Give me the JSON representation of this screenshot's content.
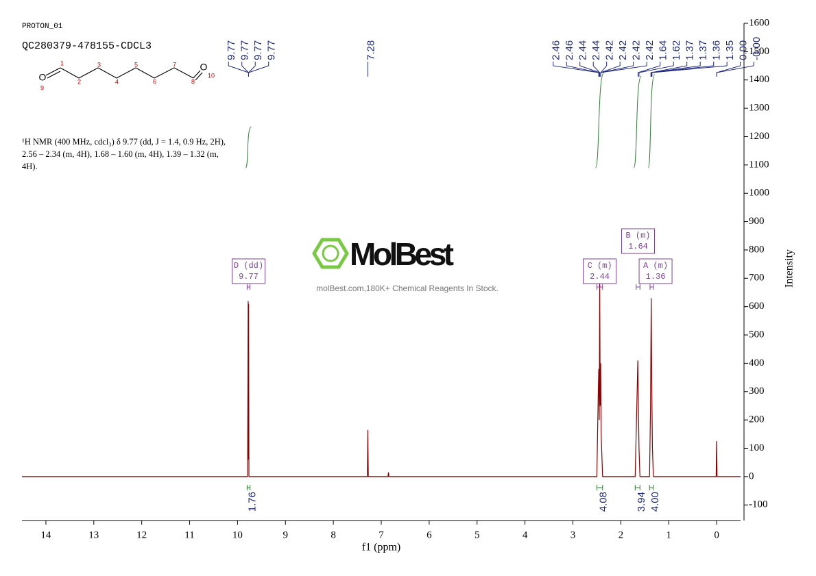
{
  "header": {
    "experiment": "PROTON_01",
    "sample": "QC280379-478155-CDCL3"
  },
  "description": [
    "¹H NMR (400 MHz, cdcl₃) δ 9.77 (dd, J = 1.4, 0.9 Hz, 2H),",
    "2.56 – 2.34 (m, 4H), 1.68 – 1.60 (m, 4H), 1.39 – 1.32 (m,",
    "4H)."
  ],
  "molecule": {
    "atoms": [
      "O",
      "O"
    ],
    "numbers": [
      1,
      2,
      3,
      4,
      5,
      6,
      7,
      8,
      9,
      10
    ]
  },
  "watermark": {
    "brand": "MolBest",
    "tagline": "molBest.com,180K+ Chemical Reagents In Stock."
  },
  "chart_data": {
    "type": "line",
    "x_label": "f1 (ppm)",
    "y_label": "Intensity",
    "color": "#8b0000",
    "x": [
      14.5,
      9.79,
      9.778,
      9.772,
      9.768,
      9.762,
      9.75,
      7.29,
      7.28,
      7.27,
      6.86,
      6.85,
      6.84,
      2.5,
      2.47,
      2.46,
      2.45,
      2.44,
      2.43,
      2.42,
      2.41,
      2.38,
      1.7,
      1.66,
      1.645,
      1.635,
      1.62,
      1.6,
      1.4,
      1.38,
      1.365,
      1.355,
      1.34,
      1.32,
      0.01,
      0.0,
      -0.01,
      -0.5
    ],
    "values": [
      0,
      0,
      620,
      60,
      610,
      0,
      0,
      0,
      165,
      0,
      0,
      15,
      0,
      0,
      300,
      380,
      200,
      700,
      250,
      400,
      150,
      0,
      0,
      290,
      410,
      280,
      100,
      0,
      0,
      240,
      630,
      350,
      100,
      0,
      0,
      125,
      0,
      0
    ],
    "xlim": [
      14.5,
      -0.5
    ],
    "xticks": [
      14,
      13,
      12,
      11,
      10,
      9,
      8,
      7,
      6,
      5,
      4,
      3,
      2,
      1,
      0
    ],
    "ylim": [
      -155,
      1600
    ],
    "yticks": [
      -100,
      0,
      100,
      200,
      300,
      400,
      500,
      600,
      700,
      800,
      900,
      1000,
      1100,
      1200,
      1300,
      1400,
      1500,
      1600
    ],
    "peaks": [
      9.77,
      9.77,
      9.77,
      9.77,
      7.28,
      2.46,
      2.46,
      2.44,
      2.44,
      2.42,
      2.42,
      2.42,
      2.42,
      1.64,
      1.62,
      1.37,
      1.37,
      1.36,
      1.35,
      {
        "value": 0,
        "label": "0.00"
      },
      {
        "value": 0,
        "label": "-0.00"
      }
    ],
    "integrals": [
      {
        "value": 1.76,
        "range": [
          9.8,
          9.74
        ]
      },
      {
        "value": 4.08,
        "range": [
          2.5,
          2.38
        ]
      },
      {
        "value": 3.94,
        "range": [
          1.7,
          1.6
        ]
      },
      {
        "value": 4,
        "label": "4.00",
        "range": [
          1.4,
          1.32
        ]
      }
    ],
    "multiplets": [
      {
        "label": "D (dd)",
        "shift": 9.77,
        "range": [
          9.8,
          9.74
        ]
      },
      {
        "label": "C (m)",
        "shift": 2.44,
        "range": [
          2.5,
          2.38
        ]
      },
      {
        "label": "B (m)",
        "shift": 1.64,
        "range": [
          1.68,
          1.6
        ]
      },
      {
        "label": "A (m)",
        "shift": 1.36,
        "range": [
          1.39,
          1.32
        ]
      }
    ]
  }
}
